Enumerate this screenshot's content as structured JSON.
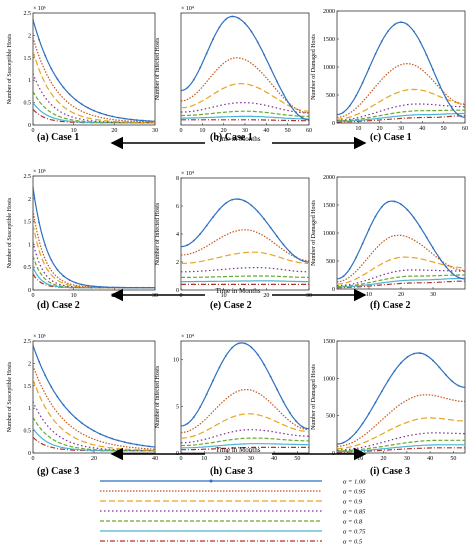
{
  "figure": {
    "time_label": "Time in Months"
  },
  "chart_data": [
    {
      "id": "a",
      "type": "line",
      "caption": "(a) Case 1",
      "ylabel": "Number of Susceptible Hosts",
      "multiplier": "× 10⁶",
      "xlim": [
        0,
        30
      ],
      "ylim": [
        0,
        2.5
      ],
      "xticks": [
        "0",
        "10",
        "20",
        "30"
      ],
      "yticks": [
        "0",
        "0.5",
        "1",
        "1.5",
        "2",
        "2.5"
      ],
      "shape": "decay",
      "start": [
        2.3,
        1.9,
        1.6,
        1.1,
        0.7,
        0.45,
        0.3
      ],
      "tau": [
        7,
        6,
        5,
        4.5,
        4,
        3.5,
        3
      ]
    },
    {
      "id": "b",
      "type": "line",
      "caption": "(b) Case 1",
      "ylabel": "Number of Infected Hosts",
      "multiplier": "× 10⁴",
      "xlim": [
        0,
        60
      ],
      "ylim": [
        0,
        6.5
      ],
      "xticks": [
        "0",
        "10",
        "20",
        "30",
        "40",
        "50",
        "60"
      ],
      "yticks": [],
      "shape": "peak",
      "peak_x": [
        24,
        26,
        28,
        29,
        30,
        31,
        32
      ],
      "peak_y": [
        6.3,
        3.9,
        2.4,
        1.3,
        0.8,
        0.5,
        0.3
      ],
      "start_y": [
        2.0,
        1.4,
        1.0,
        0.75,
        0.55,
        0.4,
        0.3
      ],
      "end_y": [
        0.3,
        0.7,
        0.8,
        0.7,
        0.5,
        0.35,
        0.25
      ]
    },
    {
      "id": "c",
      "type": "line",
      "caption": "(c) Case 1",
      "ylabel": "Number of Damaged Hosts",
      "multiplier": "",
      "xlim": [
        0,
        60
      ],
      "ylim": [
        0,
        2000
      ],
      "xticks": [
        "10",
        "20",
        "30",
        "40",
        "50",
        "60"
      ],
      "yticks": [
        "0",
        "500",
        "1000",
        "1500",
        "2000"
      ],
      "shape": "peak",
      "peak_x": [
        30,
        33,
        36,
        38,
        40,
        42,
        44
      ],
      "peak_y": [
        1800,
        1060,
        600,
        340,
        220,
        150,
        100
      ],
      "start_y": [
        150,
        100,
        70,
        50,
        40,
        30,
        20
      ],
      "end_y": [
        100,
        330,
        350,
        290,
        230,
        170,
        130
      ]
    },
    {
      "id": "d",
      "type": "line",
      "caption": "(d) Case 2",
      "ylabel": "Number of Susceptible Hosts",
      "multiplier": "× 10⁶",
      "xlim": [
        0,
        30
      ],
      "ylim": [
        0,
        2.5
      ],
      "xticks": [
        "0",
        "10",
        "20",
        "30"
      ],
      "yticks": [
        "0",
        "0.5",
        "1",
        "1.5",
        "2",
        "2.5"
      ],
      "shape": "decay",
      "start": [
        2.2,
        1.7,
        1.4,
        1.0,
        0.7,
        0.45,
        0.3
      ],
      "tau": [
        3.5,
        3,
        2.8,
        2.5,
        2.3,
        2.1,
        2
      ]
    },
    {
      "id": "e",
      "type": "line",
      "caption": "(e) Case 2",
      "ylabel": "Number of Infected Hosts",
      "multiplier": "× 10⁴",
      "xlim": [
        0,
        30
      ],
      "ylim": [
        0,
        8
      ],
      "xticks": [
        "0",
        "10",
        "20",
        "30"
      ],
      "yticks": [
        "0",
        "2",
        "4",
        "6",
        "8"
      ],
      "shape": "peak",
      "peak_x": [
        13,
        15,
        17,
        18,
        19,
        20,
        21
      ],
      "peak_y": [
        6.5,
        4.3,
        2.7,
        1.6,
        1.0,
        0.65,
        0.4
      ],
      "start_y": [
        3.1,
        2.5,
        1.9,
        1.3,
        0.9,
        0.6,
        0.4
      ],
      "end_y": [
        2.0,
        2.1,
        1.9,
        1.3,
        0.9,
        0.6,
        0.4
      ]
    },
    {
      "id": "f",
      "type": "line",
      "caption": "(f) Case 2",
      "ylabel": "Number of Damaged Hosts",
      "multiplier": "",
      "xlim": [
        0,
        40
      ],
      "ylim": [
        0,
        2000
      ],
      "xticks": [
        "10",
        "20",
        "30"
      ],
      "yticks": [
        "0",
        "500",
        "1000",
        "1500",
        "2000"
      ],
      "shape": "peak",
      "peak_x": [
        17,
        19,
        21,
        23,
        24,
        25,
        26
      ],
      "peak_y": [
        1570,
        960,
        570,
        340,
        230,
        160,
        110
      ],
      "start_y": [
        180,
        130,
        90,
        60,
        45,
        35,
        25
      ],
      "end_y": [
        180,
        330,
        380,
        320,
        250,
        190,
        140
      ]
    },
    {
      "id": "g",
      "type": "line",
      "caption": "(g) Case 3",
      "ylabel": "Number of Susceptible Hosts",
      "multiplier": "× 10⁶",
      "xlim": [
        0,
        40
      ],
      "ylim": [
        0,
        2.5
      ],
      "xticks": [
        "0",
        "20",
        "40"
      ],
      "yticks": [
        "0",
        "0.5",
        "1",
        "1.5",
        "2",
        "2.5"
      ],
      "shape": "decay",
      "start": [
        2.35,
        1.9,
        1.6,
        1.1,
        0.75,
        0.5,
        0.3
      ],
      "tau": [
        12,
        10,
        8,
        7,
        6,
        5,
        4.5
      ]
    },
    {
      "id": "h",
      "type": "line",
      "caption": "(h) Case 3",
      "ylabel": "Number of Infected Hosts",
      "multiplier": "× 10⁴",
      "xlim": [
        0,
        55
      ],
      "ylim": [
        0,
        12
      ],
      "xticks": [
        "0",
        "10",
        "20",
        "30",
        "40",
        "50"
      ],
      "yticks": [
        "0",
        "5",
        "10"
      ],
      "shape": "peak",
      "peak_x": [
        26,
        28,
        29,
        30,
        31,
        32,
        33
      ],
      "peak_y": [
        11.8,
        6.8,
        4.2,
        2.5,
        1.6,
        1.0,
        0.6
      ],
      "start_y": [
        2.9,
        2.2,
        1.6,
        1.1,
        0.8,
        0.55,
        0.35
      ],
      "end_y": [
        2.6,
        2.5,
        2.3,
        1.8,
        1.3,
        0.9,
        0.6
      ]
    },
    {
      "id": "i",
      "type": "line",
      "caption": "(i) Case 3",
      "ylabel": "Number of Damaged Hosts",
      "multiplier": "",
      "xlim": [
        0,
        55
      ],
      "ylim": [
        0,
        1500
      ],
      "xticks": [
        "10",
        "20",
        "30",
        "40",
        "50"
      ],
      "yticks": [
        "0",
        "500",
        "1000",
        "1500"
      ],
      "shape": "peak",
      "peak_x": [
        35,
        38,
        40,
        42,
        44,
        45,
        46
      ],
      "peak_y": [
        1340,
        780,
        470,
        270,
        170,
        110,
        70
      ],
      "start_y": [
        120,
        90,
        60,
        40,
        30,
        20,
        15
      ],
      "end_y": [
        880,
        690,
        430,
        260,
        170,
        110,
        70
      ]
    }
  ],
  "legend": {
    "entries": [
      {
        "label": "α = 1.00",
        "color": "#2e6fbf",
        "dash": "",
        "marker": true
      },
      {
        "label": "α = 0.95",
        "color": "#c5561b",
        "dash": "1.5,1.5",
        "marker": false
      },
      {
        "label": "α = 0.9",
        "color": "#e6a520",
        "dash": "6,3",
        "marker": false
      },
      {
        "label": "α = 0.85",
        "color": "#7d2e9a",
        "dash": "1.5,2.5",
        "marker": false
      },
      {
        "label": "α = 0.8",
        "color": "#6aa832",
        "dash": "4,2",
        "marker": false
      },
      {
        "label": "α = 0.75",
        "color": "#4cb3d6",
        "dash": "",
        "marker": false
      },
      {
        "label": "α = 0.5",
        "color": "#b5302a",
        "dash": "5,2,1,2",
        "marker": false
      }
    ]
  }
}
